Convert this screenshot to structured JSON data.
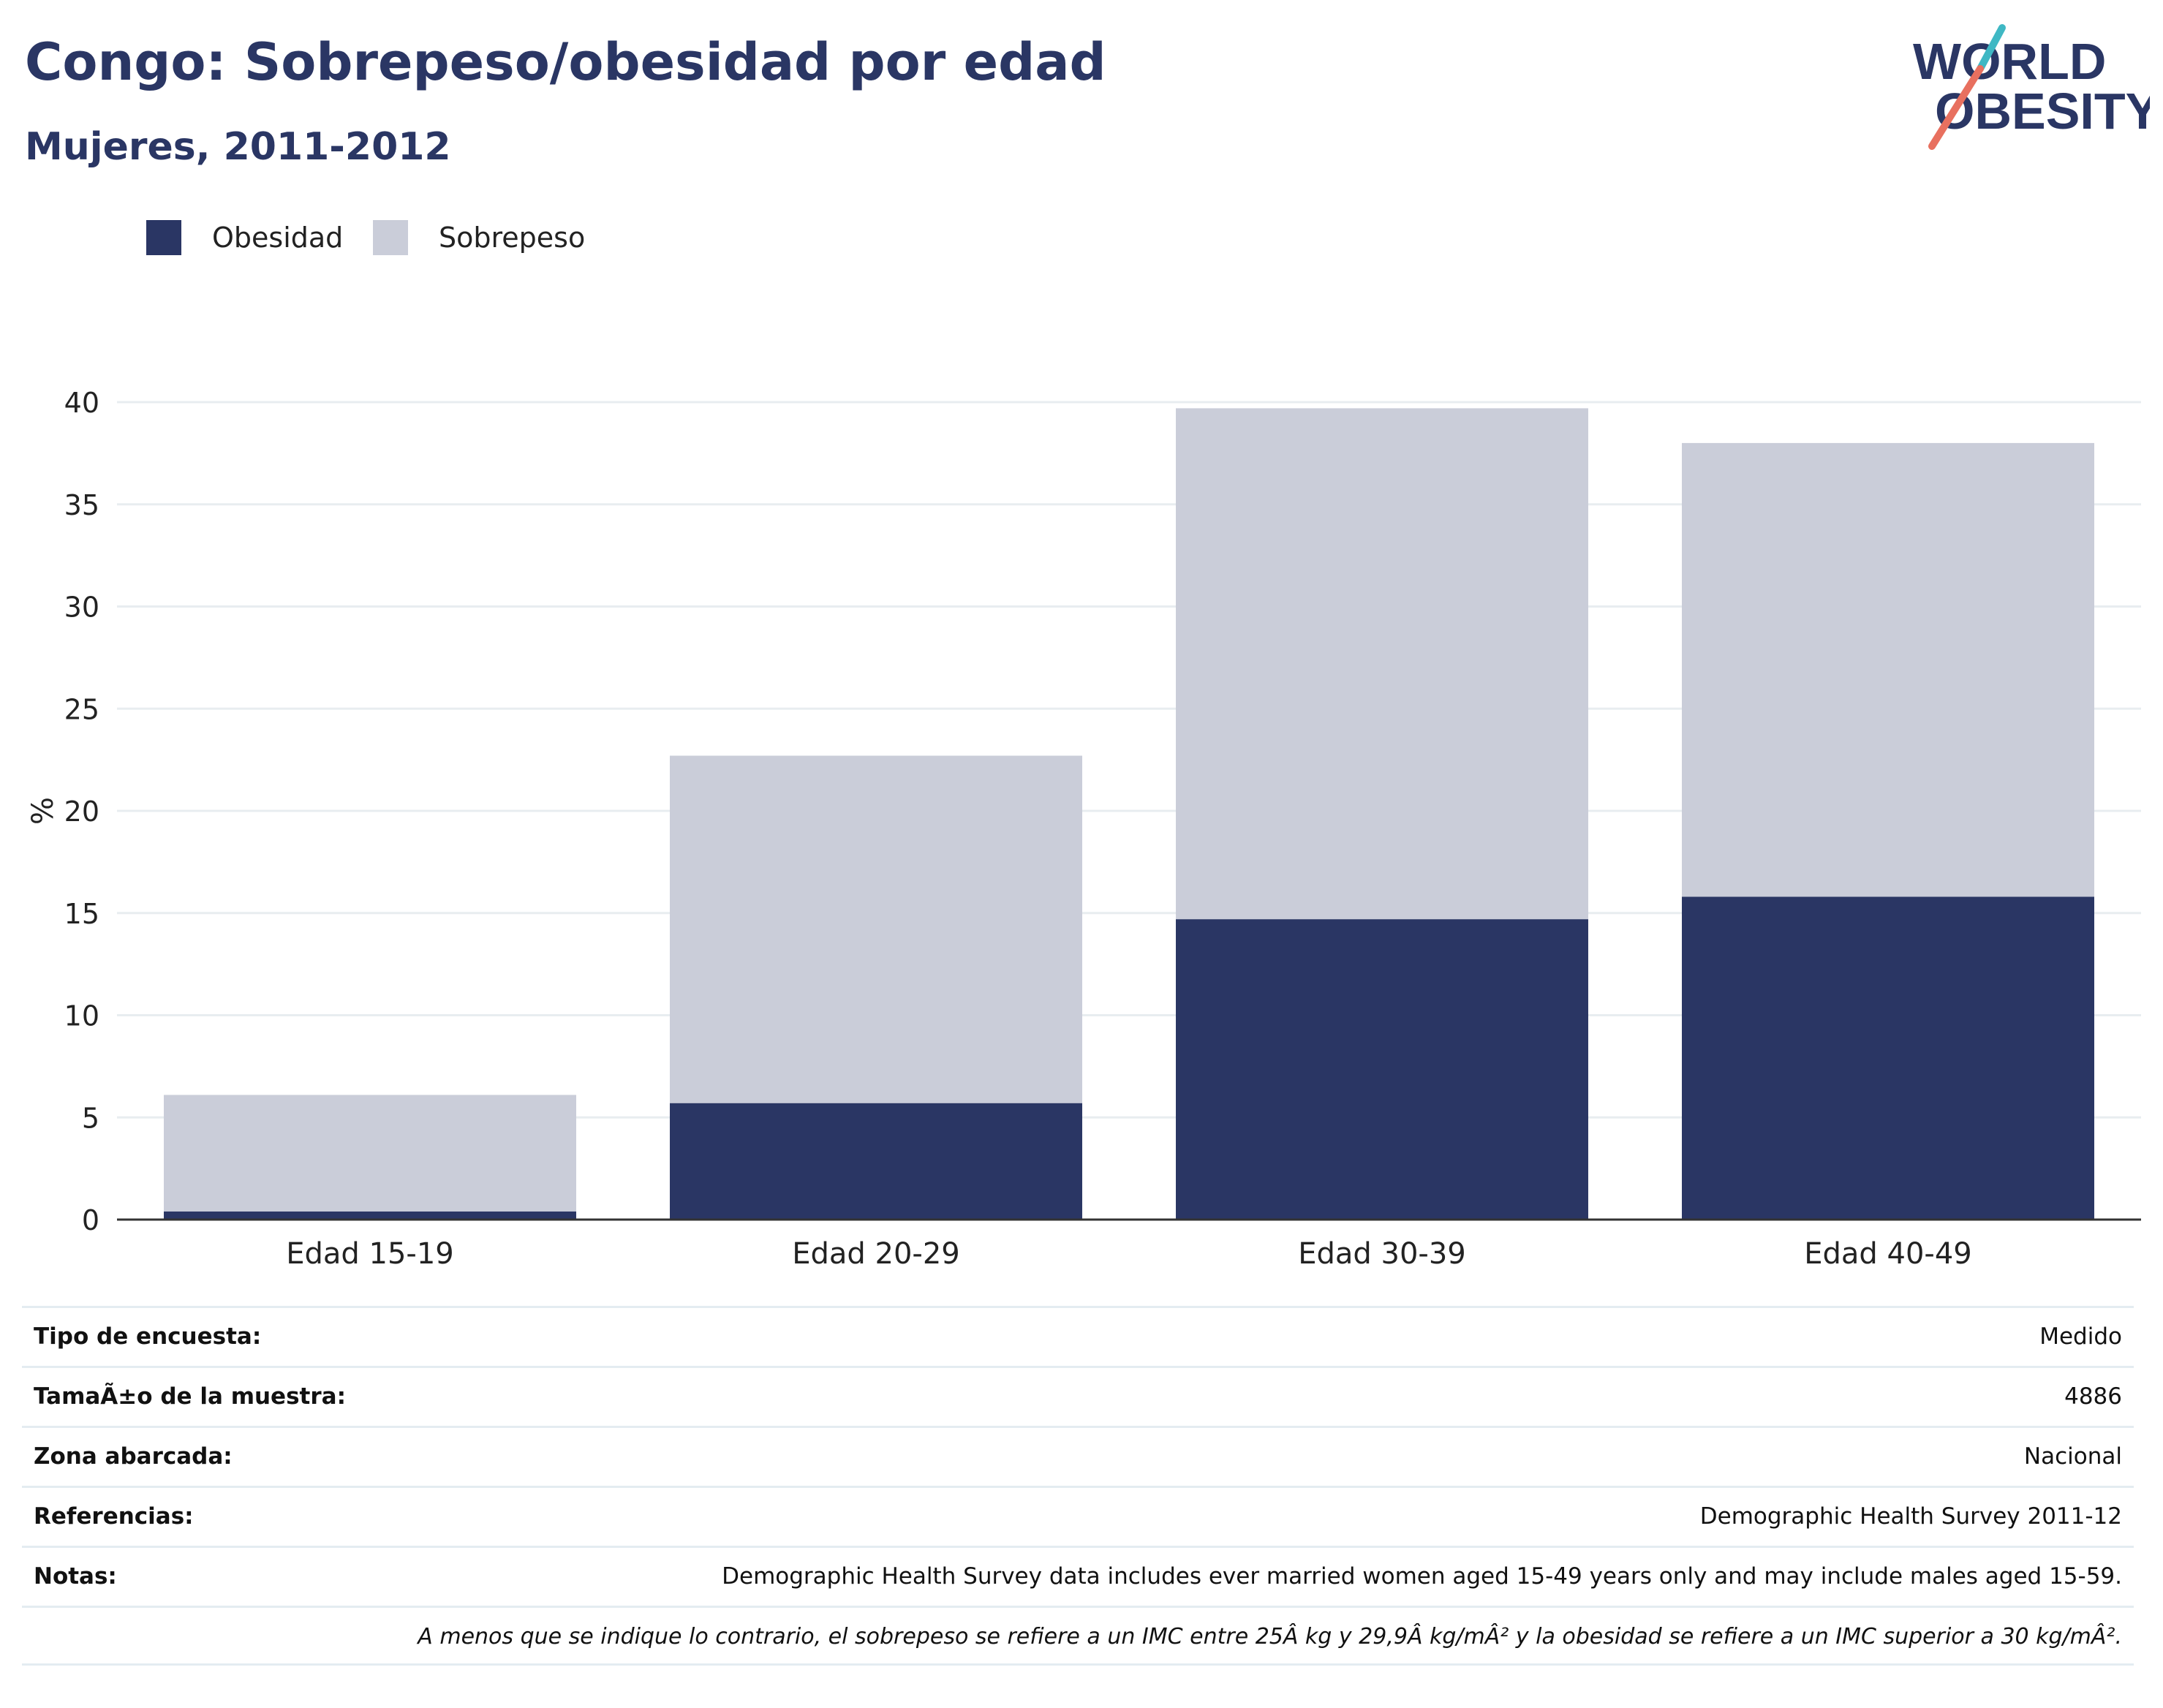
{
  "header": {
    "title": "Congo: Sobrepeso/obesidad por edad",
    "subtitle": "Mujeres, 2011-2012",
    "logo_line1": "WORLD",
    "logo_line2": "OBESITY"
  },
  "colors": {
    "obesidad": "#2a3664",
    "sobrepeso": "#cacdd9",
    "title": "#2a3664",
    "logo_slash_teal": "#3fb8c4",
    "logo_slash_coral": "#e8705f"
  },
  "legend": [
    {
      "label": "Obesidad",
      "color": "#2a3664"
    },
    {
      "label": "Sobrepeso",
      "color": "#cacdd9"
    }
  ],
  "chart_data": {
    "type": "bar",
    "stacked": true,
    "categories": [
      "Edad 15-19",
      "Edad 20-29",
      "Edad 30-39",
      "Edad 40-49"
    ],
    "series": [
      {
        "name": "Obesidad",
        "values": [
          0.4,
          5.7,
          14.7,
          15.8
        ]
      },
      {
        "name": "Sobrepeso",
        "values": [
          5.7,
          17.0,
          25.0,
          22.2
        ]
      }
    ],
    "ylabel": "%",
    "xlabel": "",
    "ylim": [
      0,
      40
    ],
    "yticks": [
      0,
      5,
      10,
      15,
      20,
      25,
      30,
      35,
      40
    ],
    "grid": true,
    "legend_position": "top-left"
  },
  "info": [
    {
      "key": "Tipo de encuesta:",
      "value": "Medido"
    },
    {
      "key": "TamaÃ±o de la muestra:",
      "value": "4886"
    },
    {
      "key": "Zona abarcada:",
      "value": "Nacional"
    },
    {
      "key": "Referencias:",
      "value": "Demographic Health Survey 2011-12"
    },
    {
      "key": "Notas:",
      "value": "Demographic Health Survey data includes ever married women aged 15-49 years only and may include males aged 15-59."
    },
    {
      "key": "",
      "value": "A menos que se indique lo contrario, el sobrepeso se refiere a un IMC entre 25Â kg y 29,9Â kg/mÂ² y la obesidad se refiere a un IMC superior a 30 kg/mÂ²."
    }
  ]
}
